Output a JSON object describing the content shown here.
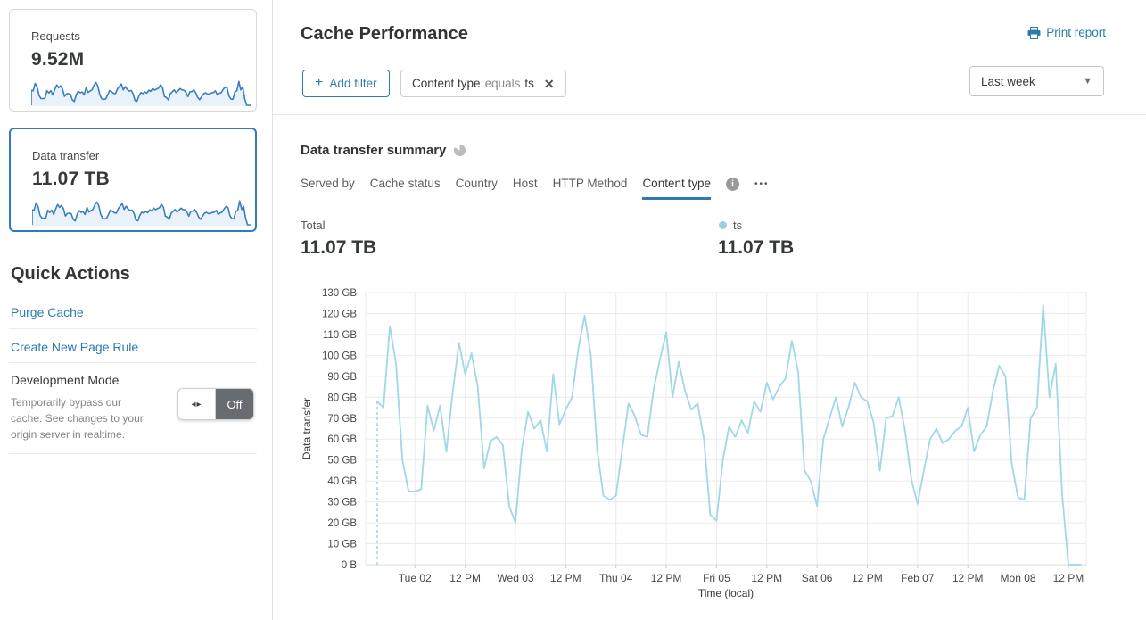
{
  "header": {
    "title": "Cache Performance",
    "print_label": "Print report"
  },
  "filters": {
    "add_label": "Add filter",
    "chip": {
      "field": "Content type",
      "operator": "equals",
      "value": "ts"
    },
    "period": "Last week"
  },
  "sidebar": {
    "metric_cards": [
      {
        "label": "Requests",
        "value": "9.52M",
        "selected": false
      },
      {
        "label": "Data transfer",
        "value": "11.07 TB",
        "selected": true
      }
    ],
    "quick_actions": {
      "heading": "Quick Actions",
      "links": [
        {
          "label": "Purge Cache"
        },
        {
          "label": "Create New Page Rule"
        }
      ],
      "development_mode": {
        "title": "Development Mode",
        "description": "Temporarily bypass our cache. See changes to your origin server in realtime.",
        "toggle_state": "Off"
      }
    }
  },
  "summary": {
    "heading": "Data transfer summary",
    "tabs": [
      {
        "label": "Served by",
        "active": false
      },
      {
        "label": "Cache status",
        "active": false
      },
      {
        "label": "Country",
        "active": false
      },
      {
        "label": "Host",
        "active": false
      },
      {
        "label": "HTTP Method",
        "active": false
      },
      {
        "label": "Content type",
        "active": true
      }
    ],
    "more_label": "•••",
    "total_label": "Total",
    "total_value": "11.07 TB",
    "legend": [
      {
        "name": "ts",
        "value": "11.07 TB",
        "color": "#96d1e2"
      }
    ]
  },
  "colors": {
    "accent_blue": "#2c7cb0",
    "selected_card_border": "#2f7bbf",
    "chart_line": "#a0d8e6",
    "sparkline_stroke": "#3a7ec2",
    "sparkline_fill": "#e9f1f9",
    "gridline": "#ebebeb"
  },
  "chart_data": {
    "type": "line",
    "title": "Data transfer summary",
    "xlabel": "Time (local)",
    "ylabel": "Data transfer",
    "unit": "GB",
    "ylim": [
      0,
      130
    ],
    "ytick_labels": [
      "0 B",
      "10 GB",
      "20 GB",
      "30 GB",
      "40 GB",
      "50 GB",
      "60 GB",
      "70 GB",
      "80 GB",
      "90 GB",
      "100 GB",
      "110 GB",
      "120 GB",
      "130 GB"
    ],
    "xtick_labels": [
      "Tue 02",
      "12 PM",
      "Wed 03",
      "12 PM",
      "Thu 04",
      "12 PM",
      "Fri 05",
      "12 PM",
      "Sat 06",
      "12 PM",
      "Feb 07",
      "12 PM",
      "Mon 08",
      "12 PM"
    ],
    "xtick_point_indices": [
      6,
      14,
      22,
      30,
      38,
      46,
      54,
      62,
      70,
      78,
      86,
      94,
      102,
      110
    ],
    "point_interval_hours": 1.5,
    "grid": true,
    "legend_position": "top-right",
    "series": [
      {
        "name": "ts",
        "total": "11.07 TB",
        "values_gb": [
          78,
          75,
          114,
          96,
          50,
          35,
          35,
          36,
          76,
          64,
          76,
          54,
          82,
          106,
          91,
          101,
          85,
          46,
          59,
          61,
          57,
          28,
          20,
          55,
          73,
          65,
          69,
          54,
          91,
          67,
          74,
          80,
          103,
          119,
          100,
          55,
          33,
          31,
          33,
          55,
          77,
          71,
          62,
          61,
          84,
          98,
          111,
          80,
          97,
          83,
          74,
          77,
          60,
          24,
          21,
          50,
          66,
          61,
          69,
          63,
          78,
          73,
          87,
          79,
          85,
          89,
          107,
          92,
          45,
          40,
          28,
          60,
          70,
          80,
          66,
          75,
          87,
          80,
          78,
          68,
          45,
          70,
          71,
          80,
          64,
          41,
          29,
          45,
          60,
          65,
          58,
          60,
          64,
          66,
          75,
          54,
          62,
          66,
          83,
          95,
          90,
          48,
          32,
          31,
          70,
          75,
          124,
          80,
          96,
          34,
          0,
          0,
          0
        ]
      }
    ]
  }
}
